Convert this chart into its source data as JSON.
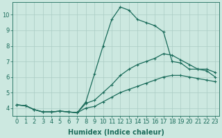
{
  "xlabel": "Humidex (Indice chaleur)",
  "ylabel": "",
  "bg_color": "#cce8e0",
  "grid_color": "#aaccc4",
  "line_color": "#1a6b5a",
  "xlim": [
    -0.5,
    23.5
  ],
  "ylim": [
    3.5,
    10.8
  ],
  "xticks": [
    0,
    1,
    2,
    3,
    4,
    5,
    6,
    7,
    8,
    9,
    10,
    11,
    12,
    13,
    14,
    15,
    16,
    17,
    18,
    19,
    20,
    21,
    22,
    23
  ],
  "yticks": [
    4,
    5,
    6,
    7,
    8,
    9,
    10
  ],
  "line_peak_x": [
    0,
    1,
    2,
    3,
    4,
    5,
    6,
    7,
    8,
    9,
    10,
    11,
    12,
    13,
    14,
    15,
    16,
    17,
    18,
    19,
    20,
    21,
    22,
    23
  ],
  "line_peak_y": [
    4.2,
    4.15,
    3.9,
    3.75,
    3.75,
    3.8,
    3.75,
    3.7,
    4.4,
    6.2,
    8.0,
    9.7,
    10.5,
    10.3,
    9.7,
    9.5,
    9.3,
    8.9,
    7.0,
    6.9,
    6.5,
    6.5,
    6.4,
    6.0
  ],
  "line_mid_x": [
    0,
    1,
    2,
    3,
    4,
    5,
    6,
    7,
    8,
    9,
    10,
    11,
    12,
    13,
    14,
    15,
    16,
    17,
    18,
    19,
    20,
    21,
    22,
    23
  ],
  "line_mid_y": [
    4.2,
    4.15,
    3.9,
    3.75,
    3.75,
    3.8,
    3.75,
    3.7,
    4.3,
    4.5,
    5.0,
    5.5,
    6.1,
    6.5,
    6.8,
    7.0,
    7.2,
    7.5,
    7.4,
    7.1,
    6.8,
    6.5,
    6.5,
    6.3
  ],
  "line_low_x": [
    0,
    1,
    2,
    3,
    4,
    5,
    6,
    7,
    8,
    9,
    10,
    11,
    12,
    13,
    14,
    15,
    16,
    17,
    18,
    19,
    20,
    21,
    22,
    23
  ],
  "line_low_y": [
    4.2,
    4.15,
    3.9,
    3.75,
    3.75,
    3.8,
    3.75,
    3.7,
    4.0,
    4.1,
    4.4,
    4.7,
    5.0,
    5.2,
    5.4,
    5.6,
    5.8,
    6.0,
    6.1,
    6.1,
    6.0,
    5.9,
    5.8,
    5.7
  ],
  "fontsize_label": 7,
  "fontsize_tick": 6.0,
  "linewidth": 0.9,
  "marker_size": 2.8
}
